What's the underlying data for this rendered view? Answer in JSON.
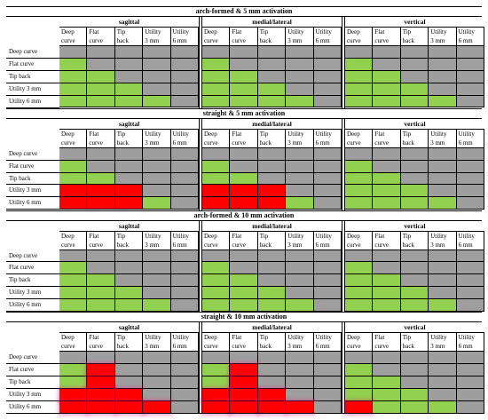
{
  "groups": [
    "sagittal",
    "medial/lateral",
    "vertical"
  ],
  "columns": [
    "Deep\ncurve",
    "Flat\ncurve",
    "Tip\nback",
    "Utility\n3 mm",
    "Utility\n6 mm"
  ],
  "rows": [
    "Deep curve",
    "Flat curve",
    "Tip back",
    "Utility 3 mm",
    "Utility 6 mm"
  ],
  "colors": {
    "green": "#92d050",
    "gray": "#9e9e9e",
    "red": "#ff0000"
  },
  "sections": [
    {
      "title": "arch-formed & 5 mm activation",
      "grids": [
        [
          [
            "y",
            "y",
            "y",
            "y",
            "y"
          ],
          [
            "g",
            "y",
            "y",
            "y",
            "y"
          ],
          [
            "g",
            "g",
            "y",
            "y",
            "y"
          ],
          [
            "g",
            "g",
            "g",
            "y",
            "y"
          ],
          [
            "g",
            "g",
            "g",
            "g",
            "y"
          ]
        ],
        [
          [
            "y",
            "y",
            "y",
            "y",
            "y"
          ],
          [
            "g",
            "y",
            "y",
            "y",
            "y"
          ],
          [
            "g",
            "g",
            "y",
            "y",
            "y"
          ],
          [
            "g",
            "g",
            "g",
            "y",
            "y"
          ],
          [
            "g",
            "g",
            "g",
            "g",
            "y"
          ]
        ],
        [
          [
            "y",
            "y",
            "y",
            "y",
            "y"
          ],
          [
            "g",
            "y",
            "y",
            "y",
            "y"
          ],
          [
            "g",
            "g",
            "y",
            "y",
            "y"
          ],
          [
            "g",
            "g",
            "g",
            "y",
            "y"
          ],
          [
            "g",
            "g",
            "g",
            "g",
            "y"
          ]
        ]
      ]
    },
    {
      "title": "straight & 5 mm activation",
      "grids": [
        [
          [
            "y",
            "y",
            "y",
            "y",
            "y"
          ],
          [
            "g",
            "y",
            "y",
            "y",
            "y"
          ],
          [
            "g",
            "g",
            "y",
            "y",
            "y"
          ],
          [
            "r",
            "r",
            "r",
            "y",
            "y"
          ],
          [
            "r",
            "r",
            "r",
            "g",
            "y"
          ]
        ],
        [
          [
            "y",
            "y",
            "y",
            "y",
            "y"
          ],
          [
            "g",
            "y",
            "y",
            "y",
            "y"
          ],
          [
            "g",
            "g",
            "y",
            "y",
            "y"
          ],
          [
            "r",
            "r",
            "r",
            "y",
            "y"
          ],
          [
            "r",
            "r",
            "r",
            "g",
            "y"
          ]
        ],
        [
          [
            "y",
            "y",
            "y",
            "y",
            "y"
          ],
          [
            "g",
            "y",
            "y",
            "y",
            "y"
          ],
          [
            "g",
            "g",
            "y",
            "y",
            "y"
          ],
          [
            "g",
            "g",
            "g",
            "y",
            "y"
          ],
          [
            "g",
            "g",
            "g",
            "g",
            "y"
          ]
        ]
      ]
    },
    {
      "title": "arch-formed & 10 mm activation",
      "grids": [
        [
          [
            "y",
            "y",
            "y",
            "y",
            "y"
          ],
          [
            "g",
            "y",
            "y",
            "y",
            "y"
          ],
          [
            "g",
            "g",
            "y",
            "y",
            "y"
          ],
          [
            "g",
            "g",
            "g",
            "y",
            "y"
          ],
          [
            "g",
            "g",
            "g",
            "g",
            "y"
          ]
        ],
        [
          [
            "y",
            "y",
            "y",
            "y",
            "y"
          ],
          [
            "g",
            "y",
            "y",
            "y",
            "y"
          ],
          [
            "g",
            "g",
            "y",
            "y",
            "y"
          ],
          [
            "g",
            "g",
            "g",
            "y",
            "y"
          ],
          [
            "g",
            "g",
            "g",
            "g",
            "y"
          ]
        ],
        [
          [
            "y",
            "y",
            "y",
            "y",
            "y"
          ],
          [
            "g",
            "y",
            "y",
            "y",
            "y"
          ],
          [
            "g",
            "g",
            "y",
            "y",
            "y"
          ],
          [
            "g",
            "g",
            "g",
            "y",
            "y"
          ],
          [
            "g",
            "g",
            "g",
            "g",
            "y"
          ]
        ]
      ]
    },
    {
      "title": "straight & 10 mm activation",
      "grids": [
        [
          [
            "y",
            "y",
            "y",
            "y",
            "y"
          ],
          [
            "g",
            "r",
            "y",
            "y",
            "y"
          ],
          [
            "g",
            "r",
            "y",
            "y",
            "y"
          ],
          [
            "r",
            "r",
            "r",
            "y",
            "y"
          ],
          [
            "r",
            "r",
            "r",
            "r",
            "y"
          ]
        ],
        [
          [
            "y",
            "y",
            "y",
            "y",
            "y"
          ],
          [
            "g",
            "r",
            "y",
            "y",
            "y"
          ],
          [
            "g",
            "r",
            "y",
            "y",
            "y"
          ],
          [
            "r",
            "r",
            "r",
            "y",
            "y"
          ],
          [
            "r",
            "r",
            "r",
            "r",
            "y"
          ]
        ],
        [
          [
            "y",
            "y",
            "y",
            "y",
            "y"
          ],
          [
            "g",
            "y",
            "y",
            "y",
            "y"
          ],
          [
            "g",
            "g",
            "y",
            "y",
            "y"
          ],
          [
            "g",
            "g",
            "g",
            "y",
            "y"
          ],
          [
            "r",
            "g",
            "g",
            "g",
            "y"
          ]
        ]
      ]
    }
  ]
}
